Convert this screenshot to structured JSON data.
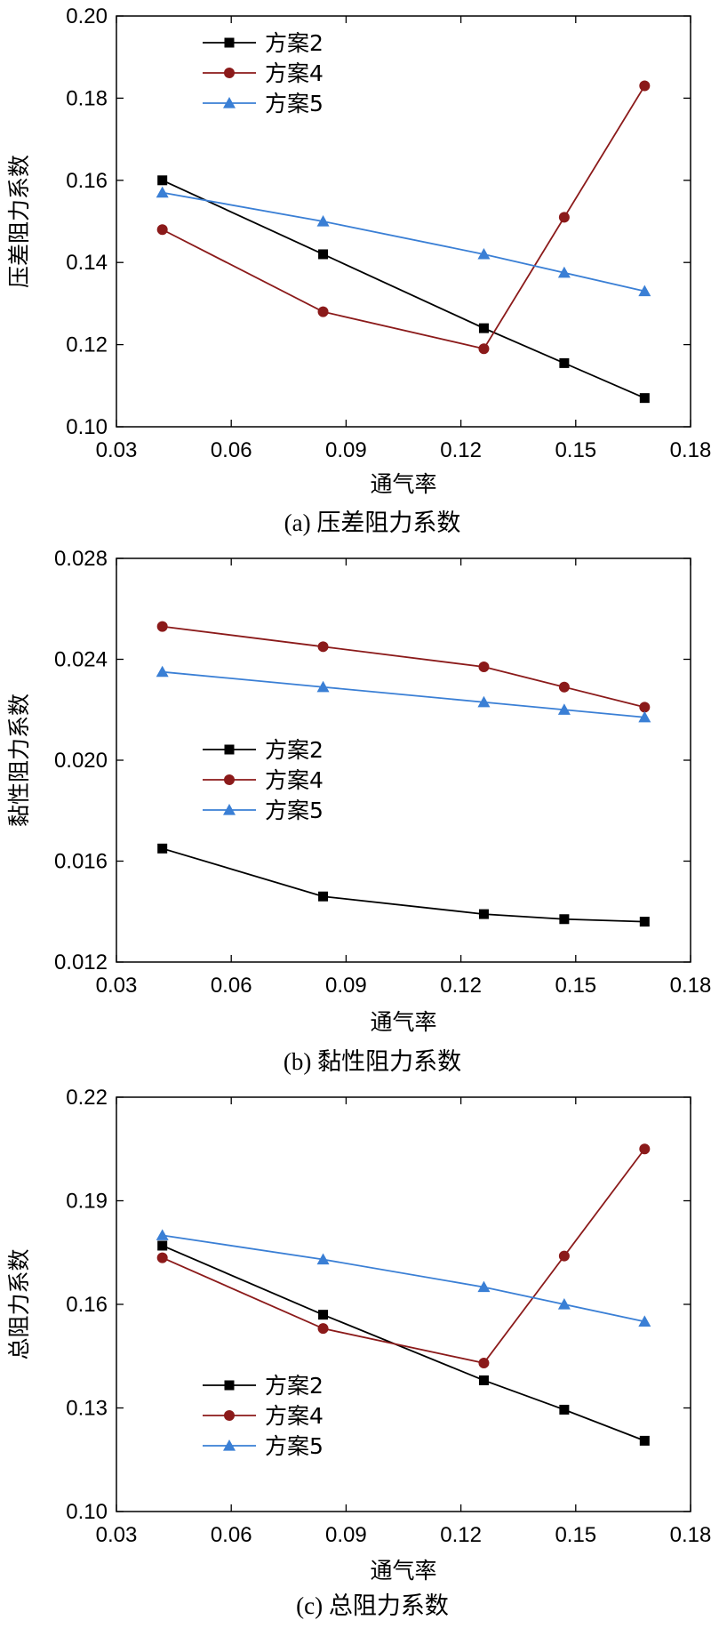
{
  "chart_data": [
    {
      "type": "line",
      "caption": "(a) 压差阻力系数",
      "xlabel": "通气率",
      "ylabel": "压差阻力系数",
      "xlim": [
        0.03,
        0.18
      ],
      "ylim": [
        0.1,
        0.2
      ],
      "xticks": [
        "0.03",
        "0.06",
        "0.09",
        "0.12",
        "0.15",
        "0.18"
      ],
      "yticks": [
        "0.10",
        "0.12",
        "0.14",
        "0.16",
        "0.18",
        "0.20"
      ],
      "x": [
        0.042,
        0.084,
        0.126,
        0.147,
        0.168
      ],
      "legend_position": "top-left",
      "series": [
        {
          "name": "方案2",
          "color": "#000000",
          "marker": "square",
          "values": [
            0.16,
            0.142,
            0.124,
            0.1155,
            0.107
          ]
        },
        {
          "name": "方案4",
          "color": "#8b1a1a",
          "marker": "circle",
          "values": [
            0.148,
            0.128,
            0.119,
            0.151,
            0.183
          ]
        },
        {
          "name": "方案5",
          "color": "#3a7fd5",
          "marker": "triangle",
          "values": [
            0.157,
            0.15,
            0.142,
            0.1375,
            0.133
          ]
        }
      ]
    },
    {
      "type": "line",
      "caption": "(b) 黏性阻力系数",
      "xlabel": "通气率",
      "ylabel": "黏性阻力系数",
      "xlim": [
        0.03,
        0.18
      ],
      "ylim": [
        0.012,
        0.028
      ],
      "xticks": [
        "0.03",
        "0.06",
        "0.09",
        "0.12",
        "0.15",
        "0.18"
      ],
      "yticks": [
        "0.012",
        "0.016",
        "0.020",
        "0.024",
        "0.028"
      ],
      "x": [
        0.042,
        0.084,
        0.126,
        0.147,
        0.168
      ],
      "legend_position": "center-left",
      "series": [
        {
          "name": "方案2",
          "color": "#000000",
          "marker": "square",
          "values": [
            0.0165,
            0.0146,
            0.0139,
            0.0137,
            0.0136
          ]
        },
        {
          "name": "方案4",
          "color": "#8b1a1a",
          "marker": "circle",
          "values": [
            0.0253,
            0.0245,
            0.0237,
            0.0229,
            0.0221
          ]
        },
        {
          "name": "方案5",
          "color": "#3a7fd5",
          "marker": "triangle",
          "values": [
            0.0235,
            0.0229,
            0.0223,
            0.022,
            0.0217
          ]
        }
      ]
    },
    {
      "type": "line",
      "caption": "(c) 总阻力系数",
      "xlabel": "通气率",
      "ylabel": "总阻力系数",
      "xlim": [
        0.03,
        0.18
      ],
      "ylim": [
        0.1,
        0.22
      ],
      "xticks": [
        "0.03",
        "0.06",
        "0.09",
        "0.12",
        "0.15",
        "0.18"
      ],
      "yticks": [
        "0.10",
        "0.13",
        "0.16",
        "0.19",
        "0.22"
      ],
      "x": [
        0.042,
        0.084,
        0.126,
        0.147,
        0.168
      ],
      "legend_position": "bottom-left",
      "series": [
        {
          "name": "方案2",
          "color": "#000000",
          "marker": "square",
          "values": [
            0.177,
            0.157,
            0.138,
            0.1295,
            0.1205
          ]
        },
        {
          "name": "方案4",
          "color": "#8b1a1a",
          "marker": "circle",
          "values": [
            0.1735,
            0.153,
            0.143,
            0.174,
            0.205
          ]
        },
        {
          "name": "方案5",
          "color": "#3a7fd5",
          "marker": "triangle",
          "values": [
            0.18,
            0.173,
            0.165,
            0.16,
            0.155
          ]
        }
      ]
    }
  ]
}
